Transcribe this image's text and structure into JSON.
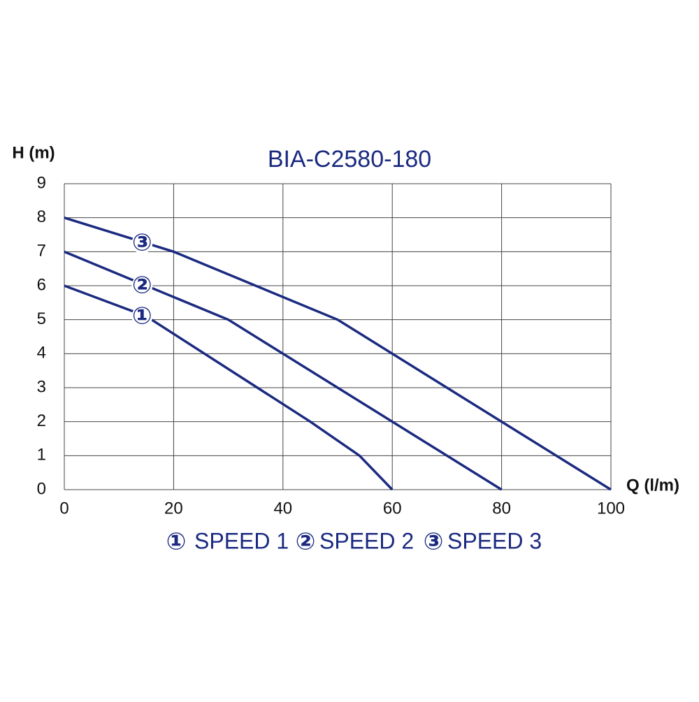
{
  "chart_data": {
    "type": "line",
    "title": "BIA-C2580-180",
    "y_label": "H (m)",
    "x_label": "Q (l/m)",
    "xlim": [
      0,
      100
    ],
    "xticks": [
      0,
      20,
      40,
      60,
      80,
      100
    ],
    "ylim": [
      0,
      9
    ],
    "yticks": [
      0,
      1,
      2,
      3,
      4,
      5,
      6,
      7,
      8,
      9
    ],
    "grid": true,
    "series": [
      {
        "name": "SPEED 1",
        "marker": "①",
        "color": "#1b2a80",
        "x": [
          0,
          15,
          45,
          54,
          60
        ],
        "values": [
          6,
          5.1,
          2,
          1,
          0
        ]
      },
      {
        "name": "SPEED 2",
        "marker": "②",
        "color": "#1b2a80",
        "x": [
          0,
          30,
          80
        ],
        "values": [
          7,
          5,
          0
        ]
      },
      {
        "name": "SPEED 3",
        "marker": "③",
        "color": "#1b2a80",
        "x": [
          0,
          20,
          50,
          100
        ],
        "values": [
          8,
          7,
          5,
          0
        ]
      }
    ]
  }
}
